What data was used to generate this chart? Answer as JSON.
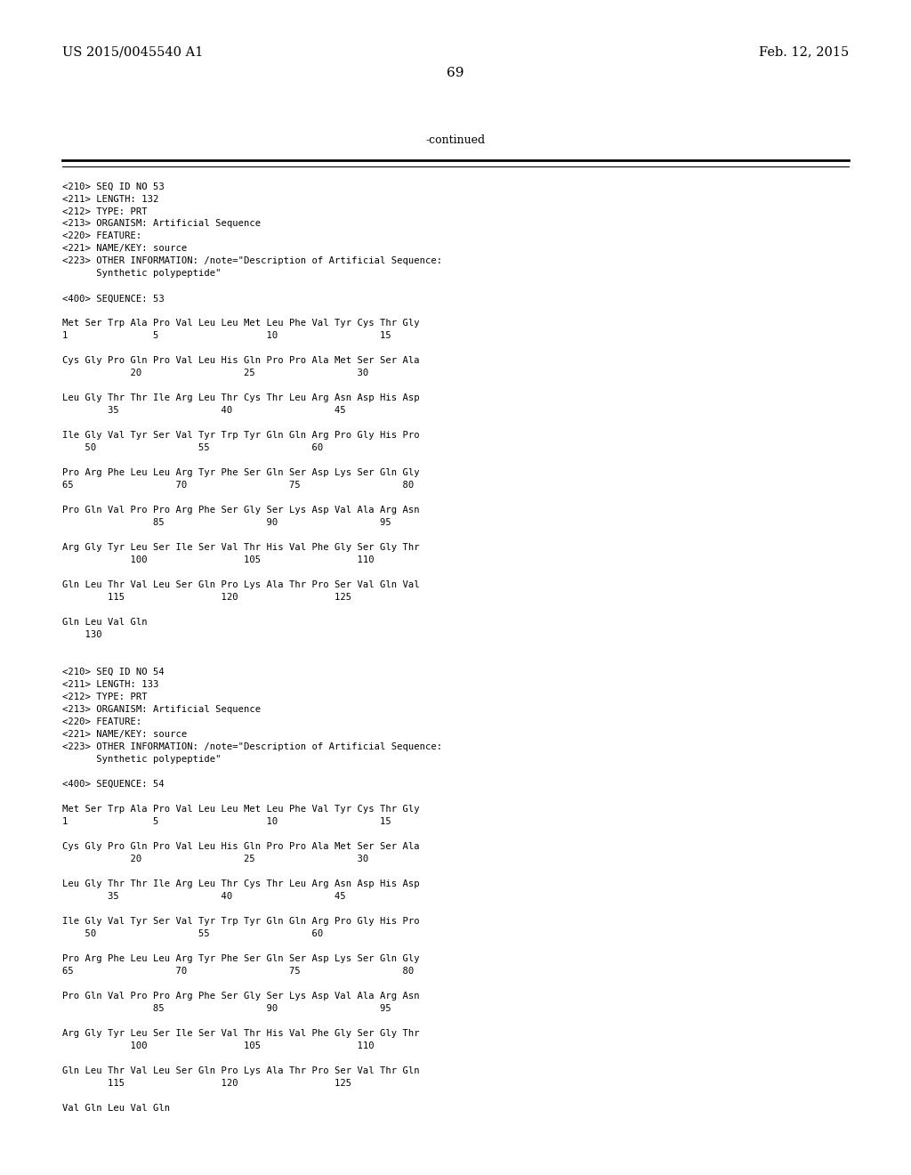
{
  "background_color": "#ffffff",
  "top_left_text": "US 2015/0045540 A1",
  "top_right_text": "Feb. 12, 2015",
  "page_number": "69",
  "continued_text": "-continued",
  "lines": [
    "<210> SEQ ID NO 53",
    "<211> LENGTH: 132",
    "<212> TYPE: PRT",
    "<213> ORGANISM: Artificial Sequence",
    "<220> FEATURE:",
    "<221> NAME/KEY: source",
    "<223> OTHER INFORMATION: /note=\"Description of Artificial Sequence:",
    "      Synthetic polypeptide\"",
    "",
    "<400> SEQUENCE: 53",
    "",
    "Met Ser Trp Ala Pro Val Leu Leu Met Leu Phe Val Tyr Cys Thr Gly",
    "1               5                   10                  15",
    "",
    "Cys Gly Pro Gln Pro Val Leu His Gln Pro Pro Ala Met Ser Ser Ala",
    "            20                  25                  30",
    "",
    "Leu Gly Thr Thr Ile Arg Leu Thr Cys Thr Leu Arg Asn Asp His Asp",
    "        35                  40                  45",
    "",
    "Ile Gly Val Tyr Ser Val Tyr Trp Tyr Gln Gln Arg Pro Gly His Pro",
    "    50                  55                  60",
    "",
    "Pro Arg Phe Leu Leu Arg Tyr Phe Ser Gln Ser Asp Lys Ser Gln Gly",
    "65                  70                  75                  80",
    "",
    "Pro Gln Val Pro Pro Arg Phe Ser Gly Ser Lys Asp Val Ala Arg Asn",
    "                85                  90                  95",
    "",
    "Arg Gly Tyr Leu Ser Ile Ser Val Thr His Val Phe Gly Ser Gly Thr",
    "            100                 105                 110",
    "",
    "Gln Leu Thr Val Leu Ser Gln Pro Lys Ala Thr Pro Ser Val Gln Val",
    "        115                 120                 125",
    "",
    "Gln Leu Val Gln",
    "    130",
    "",
    "",
    "<210> SEQ ID NO 54",
    "<211> LENGTH: 133",
    "<212> TYPE: PRT",
    "<213> ORGANISM: Artificial Sequence",
    "<220> FEATURE:",
    "<221> NAME/KEY: source",
    "<223> OTHER INFORMATION: /note=\"Description of Artificial Sequence:",
    "      Synthetic polypeptide\"",
    "",
    "<400> SEQUENCE: 54",
    "",
    "Met Ser Trp Ala Pro Val Leu Leu Met Leu Phe Val Tyr Cys Thr Gly",
    "1               5                   10                  15",
    "",
    "Cys Gly Pro Gln Pro Val Leu His Gln Pro Pro Ala Met Ser Ser Ala",
    "            20                  25                  30",
    "",
    "Leu Gly Thr Thr Ile Arg Leu Thr Cys Thr Leu Arg Asn Asp His Asp",
    "        35                  40                  45",
    "",
    "Ile Gly Val Tyr Ser Val Tyr Trp Tyr Gln Gln Arg Pro Gly His Pro",
    "    50                  55                  60",
    "",
    "Pro Arg Phe Leu Leu Arg Tyr Phe Ser Gln Ser Asp Lys Ser Gln Gly",
    "65                  70                  75                  80",
    "",
    "Pro Gln Val Pro Pro Arg Phe Ser Gly Ser Lys Asp Val Ala Arg Asn",
    "                85                  90                  95",
    "",
    "Arg Gly Tyr Leu Ser Ile Ser Val Thr His Val Phe Gly Ser Gly Thr",
    "            100                 105                 110",
    "",
    "Gln Leu Thr Val Leu Ser Gln Pro Lys Ala Thr Pro Ser Val Thr Gln",
    "        115                 120                 125",
    "",
    "Val Gln Leu Val Gln"
  ]
}
